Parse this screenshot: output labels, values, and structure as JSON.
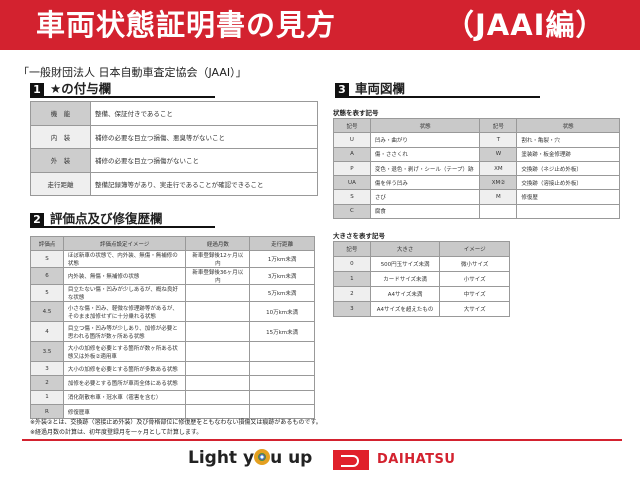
{
  "header": {
    "title": "車両状態証明書の見方",
    "subtitle": "（JAAI編）"
  },
  "organization": "「一般財団法人 日本自動車査定協会（JAAI）」",
  "section1": {
    "num": "1",
    "title": "★の付与欄",
    "rows": [
      {
        "label": "機　能",
        "text": "整備、保証付きであること"
      },
      {
        "label": "内　装",
        "text": "補修の必要な目立つ損傷、悪臭等がないこと"
      },
      {
        "label": "外　装",
        "text": "補修の必要な目立つ損傷がないこと"
      },
      {
        "label": "走行距離",
        "text": "整備記録簿等があり、実走行であることが確認できること"
      }
    ]
  },
  "section2": {
    "num": "2",
    "title": "評価点及び修復歴欄",
    "headers": [
      "評価点",
      "評価点設定イメージ",
      "経過月数",
      "走行距離"
    ],
    "rows": [
      [
        "S",
        "ほぼ新車の状態で、内外装、無傷・無補修の状態",
        "新車登録後12ヶ月以内",
        "1万km未満"
      ],
      [
        "6",
        "内外装、無傷・無補修の状態",
        "新車登録後36ヶ月以内",
        "3万km未満"
      ],
      [
        "5",
        "目立たない傷・凹みが少しあるが、概ね良好な状態",
        "",
        "5万km未満"
      ],
      [
        "4.5",
        "小さな傷・凹み、軽微な修理跡等があるが、そのまま加修せずに十分乗れる状態",
        "",
        "10万km未満"
      ],
      [
        "4",
        "目立つ傷・凹み等が少しあり、加修が必要と思われる箇所が数ヶ所ある状態",
        "",
        "15万km未満"
      ],
      [
        "3.5",
        "大小の加修を必要とする箇所が数ヶ所ある状態又は外板②適用車",
        "",
        ""
      ],
      [
        "3",
        "大小の加修を必要とする箇所が多数ある状態",
        "",
        ""
      ],
      [
        "2",
        "加修を必要とする箇所が車両全体にある状態",
        "",
        ""
      ],
      [
        "1",
        "消化剤散布車・冠水車（雹害を含む）",
        "",
        ""
      ],
      [
        "R",
        "修復歴車",
        "",
        ""
      ]
    ]
  },
  "notes": [
    "※外装②とは、交換跡（溶接止め外装）及び骨格部位に修復歴をともなわない損傷又は痕跡があるものです。",
    "※経過月数の計算は、初年度登録月を一ヶ月として計算します。"
  ],
  "section3": {
    "num": "3",
    "title": "車両図欄",
    "state_caption": "状態を表す記号",
    "state_headers": [
      "記号",
      "状態",
      "記号",
      "状態"
    ],
    "state_rows": [
      [
        "U",
        "凹み・曲がり",
        "T",
        "割れ・亀裂・穴"
      ],
      [
        "A",
        "傷・ささくれ",
        "W",
        "塗装跡・板金修理跡"
      ],
      [
        "P",
        "変色・退色・剥げ・シール（テープ）跡",
        "XM",
        "交換跡（ネジ止め外板）"
      ],
      [
        "UA",
        "傷を伴う凹み",
        "XM②",
        "交換跡（溶接止め外板）"
      ],
      [
        "S",
        "さび",
        "M",
        "修復歴"
      ],
      [
        "C",
        "腐食",
        "",
        ""
      ]
    ],
    "size_caption": "大きさを表す記号",
    "size_headers": [
      "記号",
      "大きさ",
      "イメージ"
    ],
    "size_rows": [
      [
        "0",
        "500円玉サイズ未満",
        "微小サイズ"
      ],
      [
        "1",
        "カードサイズ未満",
        "小サイズ"
      ],
      [
        "2",
        "A4サイズ未満",
        "中サイズ"
      ],
      [
        "3",
        "A4サイズを超えたもの",
        "大サイズ"
      ]
    ]
  },
  "footer": {
    "slogan_a": "Light y",
    "slogan_b": "u up",
    "brand": "DAIHATSU",
    "brand_color": "#d3222f"
  }
}
